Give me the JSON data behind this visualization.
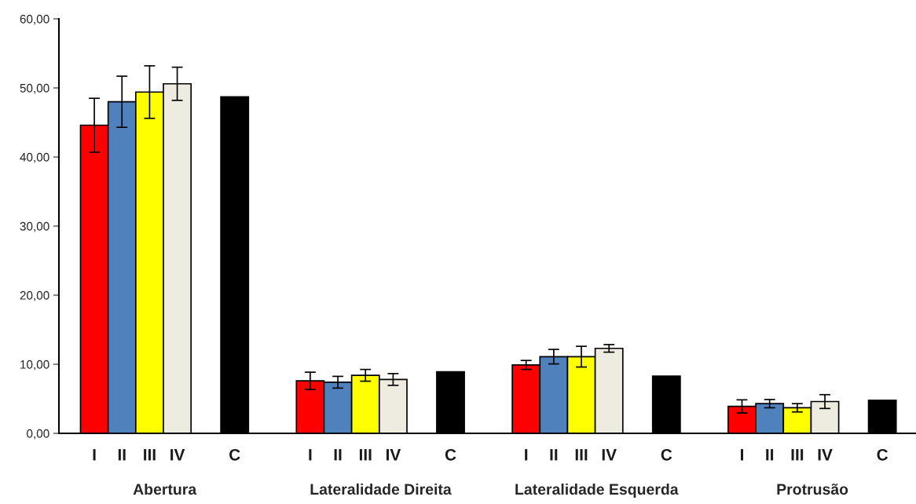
{
  "chart_data": {
    "type": "bar",
    "categories": [
      "Abertura",
      "Lateralidade Direita",
      "Lateralidade Esquerda",
      "Protrusão"
    ],
    "series": [
      {
        "name": "I",
        "color": "#ff0000",
        "values": [
          44.6,
          7.6,
          9.9,
          3.9
        ],
        "errors": [
          3.9,
          1.25,
          0.65,
          0.95
        ]
      },
      {
        "name": "II",
        "color": "#4f81bd",
        "values": [
          48.0,
          7.4,
          11.1,
          4.3
        ],
        "errors": [
          3.7,
          0.85,
          1.05,
          0.6
        ]
      },
      {
        "name": "III",
        "color": "#ffff00",
        "values": [
          49.4,
          8.4,
          11.1,
          3.7
        ],
        "errors": [
          3.8,
          0.85,
          1.5,
          0.6
        ]
      },
      {
        "name": "IV",
        "color": "#eeece1",
        "values": [
          50.6,
          7.8,
          12.3,
          4.6
        ],
        "errors": [
          2.4,
          0.85,
          0.55,
          1.0
        ]
      },
      {
        "name": "C",
        "color": "#000000",
        "values": [
          48.7,
          8.9,
          8.3,
          4.8
        ]
      }
    ],
    "ylim": [
      0,
      60
    ],
    "yticks": [
      {
        "value": 0,
        "label": "0,00"
      },
      {
        "value": 10,
        "label": "10,00"
      },
      {
        "value": 20,
        "label": "20,00"
      },
      {
        "value": 30,
        "label": "30,00"
      },
      {
        "value": 40,
        "label": "40,00"
      },
      {
        "value": 50,
        "label": "50,00"
      },
      {
        "value": 60,
        "label": "60,00"
      }
    ],
    "grid": false,
    "legend": false
  }
}
